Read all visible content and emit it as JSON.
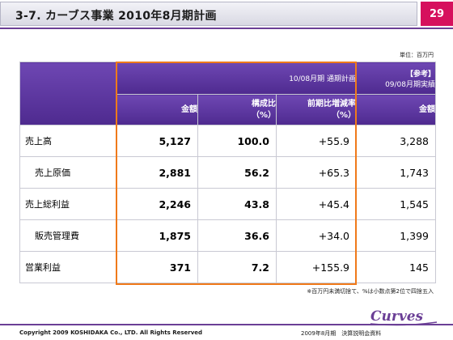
{
  "header": {
    "title": "3-7. カーブス事業 2010年8月期計画",
    "page_number": "29"
  },
  "unit_note": "単位：百万円",
  "table": {
    "plan_group_label": "10/08月期 通期計画",
    "reference_label_line1": "【参考】",
    "reference_label_line2": "09/08月期実績",
    "columns": {
      "amount": "金額",
      "ratio_line1": "構成比",
      "ratio_line2": "（%）",
      "yoy_line1": "前期比増減率",
      "yoy_line2": "（%）",
      "ref_amount": "金額"
    },
    "rows": [
      {
        "label": "売上高",
        "amount": "5,127",
        "ratio": "100.0",
        "yoy": "+55.9",
        "prev": "3,288"
      },
      {
        "label": "売上原価",
        "amount": "2,881",
        "ratio": "56.2",
        "yoy": "+65.3",
        "prev": "1,743"
      },
      {
        "label": "売上総利益",
        "amount": "2,246",
        "ratio": "43.8",
        "yoy": "+45.4",
        "prev": "1,545"
      },
      {
        "label": "販売管理費",
        "amount": "1,875",
        "ratio": "36.6",
        "yoy": "+34.0",
        "prev": "1,399"
      },
      {
        "label": "営業利益",
        "amount": "371",
        "ratio": "7.2",
        "yoy": "+155.9",
        "prev": "145"
      }
    ]
  },
  "footnote": "※百万円未満切捨て、%は小数点第2位で四捨五入",
  "footer": {
    "copyright": "Copyright 2009 KOSHIDAKA Co., LTD. All Rights Reserved",
    "document": "2009年8月期　決算説明会資料",
    "logo_text": "Curves"
  },
  "colors": {
    "header_purple": "#4e2a8f",
    "page_badge": "#d6105d",
    "highlight_orange": "#f07a1a",
    "rule_line": "#6b3f96"
  }
}
